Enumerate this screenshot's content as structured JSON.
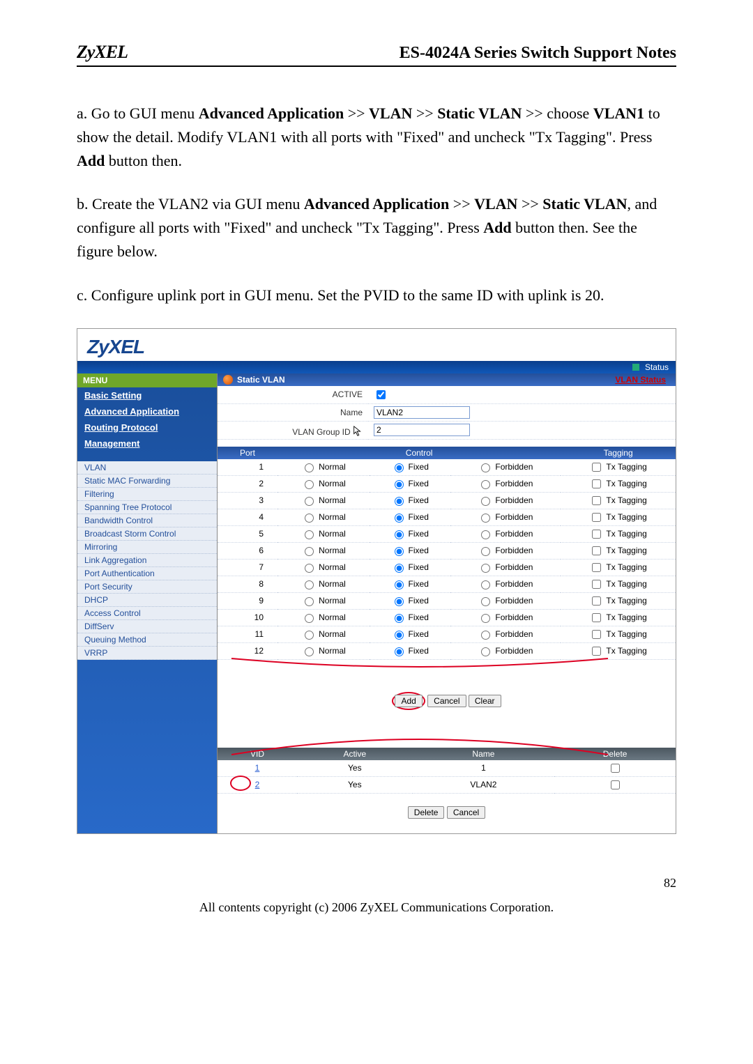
{
  "page": {
    "logo": "ZyXEL",
    "title": "ES-4024A Series Switch Support Notes",
    "page_number": "82",
    "copyright": "All contents copyright (c) 2006 ZyXEL Communications Corporation."
  },
  "body": {
    "p1_a": "a. Go to GUI menu ",
    "p1_b": "Advanced Application",
    "p1_c": " >> ",
    "p1_d": "VLAN",
    "p1_e": " >> ",
    "p1_f": "Static VLAN",
    "p1_g": " >> choose ",
    "p1_h": "VLAN1",
    "p1_i": " to show the detail. Modify VLAN1 with all ports with \"Fixed\" and uncheck \"Tx Tagging\". Press ",
    "p1_j": "Add",
    "p1_k": " button then.",
    "p2_a": "b. Create the VLAN2 via GUI menu ",
    "p2_b": "Advanced Application",
    "p2_c": " >> ",
    "p2_d": "VLAN",
    "p2_e": " >> ",
    "p2_f": "Static VLAN",
    "p2_g": ", and configure all ports with \"Fixed\" and uncheck \"Tx Tagging\". Press ",
    "p2_h": "Add",
    "p2_i": " button then. See the figure below.",
    "p3": "c. Configure uplink port in GUI menu. Set the PVID to the same ID with uplink is 20."
  },
  "ui": {
    "brand": "ZyXEL",
    "status": "Status",
    "menu_label": "MENU",
    "groups": [
      "Basic Setting",
      "Advanced Application",
      "Routing Protocol",
      "Management"
    ],
    "subs": [
      "VLAN",
      "Static MAC Forwarding",
      "Filtering",
      "Spanning Tree Protocol",
      "Bandwidth Control",
      "Broadcast Storm Control",
      "Mirroring",
      "Link Aggregation",
      "Port Authentication",
      "Port Security",
      "DHCP",
      "Access Control",
      "DiffServ",
      "Queuing Method",
      "VRRP"
    ],
    "panel_title": "Static VLAN",
    "vlan_status_link": "VLAN Status",
    "form": {
      "active_label": "ACTIVE",
      "active_checked": true,
      "name_label": "Name",
      "name_value": "VLAN2",
      "group_label": "VLAN Group ID",
      "group_value": "2"
    },
    "port_headers": [
      "Port",
      "Control",
      "Tagging"
    ],
    "control_labels": {
      "normal": "Normal",
      "fixed": "Fixed",
      "forbidden": "Forbidden"
    },
    "tagging_label": "Tx Tagging",
    "ports": [
      1,
      2,
      3,
      4,
      5,
      6,
      7,
      8,
      9,
      10,
      11,
      12
    ],
    "buttons": {
      "add": "Add",
      "cancel": "Cancel",
      "clear": "Clear",
      "delete": "Delete"
    },
    "list_headers": [
      "VID",
      "Active",
      "Name",
      "Delete"
    ],
    "list_rows": [
      {
        "vid": "1",
        "active": "Yes",
        "name": "1"
      },
      {
        "vid": "2",
        "active": "Yes",
        "name": "VLAN2"
      }
    ]
  }
}
